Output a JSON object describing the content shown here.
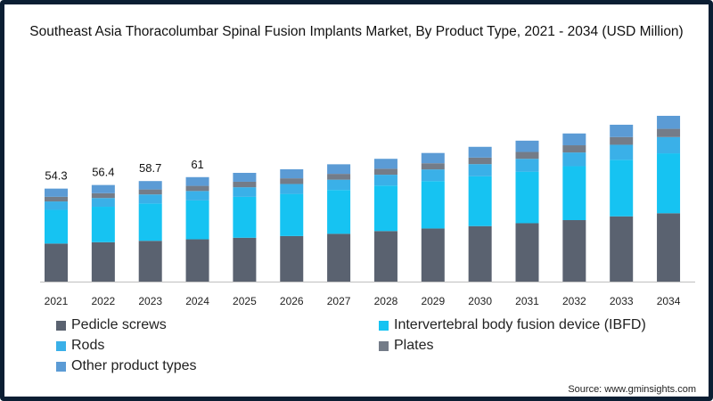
{
  "chart_data": {
    "type": "bar",
    "stacked": true,
    "title": "Southeast Asia Thoracolumbar Spinal Fusion Implants Market, By Product Type, 2021 - 2034 (USD Million)",
    "xlabel": "",
    "ylabel": "",
    "categories": [
      "2021",
      "2022",
      "2023",
      "2024",
      "2025",
      "2026",
      "2027",
      "2028",
      "2029",
      "2030",
      "2031",
      "2032",
      "2033",
      "2034"
    ],
    "series": [
      {
        "name": "Pedicle screws",
        "color": "#5a6270",
        "values": [
          22.2,
          23.0,
          23.8,
          24.7,
          25.6,
          26.6,
          27.9,
          29.5,
          31.0,
          32.4,
          34.1,
          35.9,
          38.1,
          39.9
        ]
      },
      {
        "name": "Intervertebral body fusion device (IBFD)",
        "color": "#16c3f2",
        "values": [
          19.7,
          20.7,
          21.8,
          22.7,
          23.9,
          24.6,
          25.6,
          26.6,
          27.7,
          29.1,
          30.1,
          31.5,
          33.0,
          35.0
        ]
      },
      {
        "name": "Rods",
        "color": "#3ab0e8",
        "values": [
          4.9,
          5.1,
          5.3,
          5.5,
          5.6,
          5.8,
          6.0,
          6.3,
          6.8,
          7.1,
          7.5,
          8.0,
          8.8,
          9.5
        ]
      },
      {
        "name": "Plates",
        "color": "#747c88",
        "values": [
          2.7,
          2.8,
          2.9,
          3.0,
          3.2,
          3.3,
          3.4,
          3.5,
          3.6,
          3.8,
          4.0,
          4.2,
          4.5,
          4.8
        ]
      },
      {
        "name": "Other product types",
        "color": "#5b9bd5",
        "values": [
          4.8,
          4.8,
          4.9,
          5.1,
          5.2,
          5.3,
          5.6,
          5.8,
          6.0,
          6.3,
          6.6,
          6.9,
          7.2,
          7.6
        ]
      }
    ],
    "total_labels": [
      "54.3",
      "56.4",
      "58.7",
      "61",
      "",
      "",
      "",
      "",
      "",
      "",
      "",
      "",
      "",
      ""
    ],
    "ylim": [
      0,
      115
    ],
    "grid": false,
    "legend_position": "bottom"
  },
  "source": "Source: www.gminsights.com"
}
